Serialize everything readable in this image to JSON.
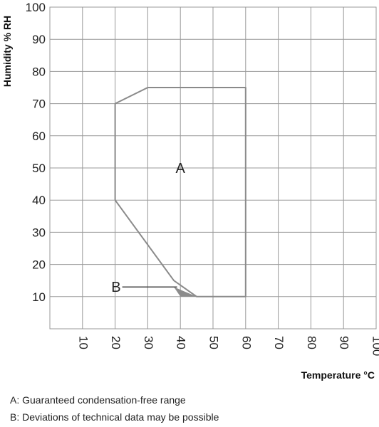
{
  "chart_data": {
    "type": "area",
    "xlabel": "Temperature °C",
    "ylabel": "Humidity % RH",
    "xlim": [
      0,
      100
    ],
    "ylim": [
      0,
      100
    ],
    "x_ticks": [
      10,
      20,
      30,
      40,
      50,
      60,
      70,
      80,
      90,
      100
    ],
    "y_ticks": [
      10,
      20,
      30,
      40,
      50,
      60,
      70,
      80,
      90,
      100
    ],
    "grid": true,
    "regions": [
      {
        "label": "A",
        "outline": [
          [
            20,
            40
          ],
          [
            20,
            70
          ],
          [
            30,
            75
          ],
          [
            60,
            75
          ],
          [
            60,
            10
          ],
          [
            45,
            10
          ],
          [
            38,
            15
          ],
          [
            20,
            40
          ]
        ],
        "label_at": [
          40,
          50
        ]
      },
      {
        "label": "B",
        "triangle": [
          [
            38,
            13
          ],
          [
            45,
            10
          ],
          [
            40,
            10
          ]
        ],
        "color": "#888888",
        "label_at": [
          20,
          13
        ],
        "pointer_to": [
          39,
          13
        ]
      }
    ],
    "legend": [
      "A: Guaranteed condensation-free range",
      "B: Deviations of technical data may be possible"
    ]
  },
  "colors": {
    "grid": "#999999",
    "outline": "#8a8a8a",
    "deviation": "#8c8c8c"
  }
}
